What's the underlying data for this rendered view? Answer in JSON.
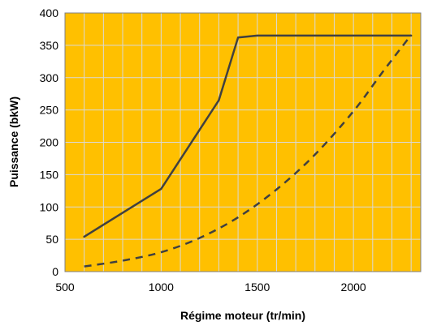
{
  "chart_data": {
    "type": "line",
    "title": "",
    "xlabel": "Régime moteur (tr/min)",
    "ylabel": "Puissance  (bkW)",
    "xlim": [
      500,
      2350
    ],
    "ylim": [
      0,
      400
    ],
    "xticks": [
      500,
      1000,
      1500,
      2000
    ],
    "yticks": [
      0,
      50,
      100,
      150,
      200,
      250,
      300,
      350,
      400
    ],
    "grid": true,
    "legend": "none",
    "colors": {
      "plot_background": "#FFC000",
      "grid": "#D9D9D9",
      "line": "#404040"
    },
    "series": [
      {
        "style": "solid",
        "x": [
          600,
          1000,
          1300,
          1400,
          1500,
          2300
        ],
        "y": [
          54,
          128,
          265,
          362,
          365,
          365
        ]
      },
      {
        "style": "dashed",
        "x": [
          600,
          800,
          1000,
          1200,
          1400,
          1600,
          1800,
          2000,
          2150,
          2300
        ],
        "y": [
          8,
          17,
          30,
          52,
          84,
          127,
          181,
          248,
          308,
          366
        ]
      }
    ]
  }
}
